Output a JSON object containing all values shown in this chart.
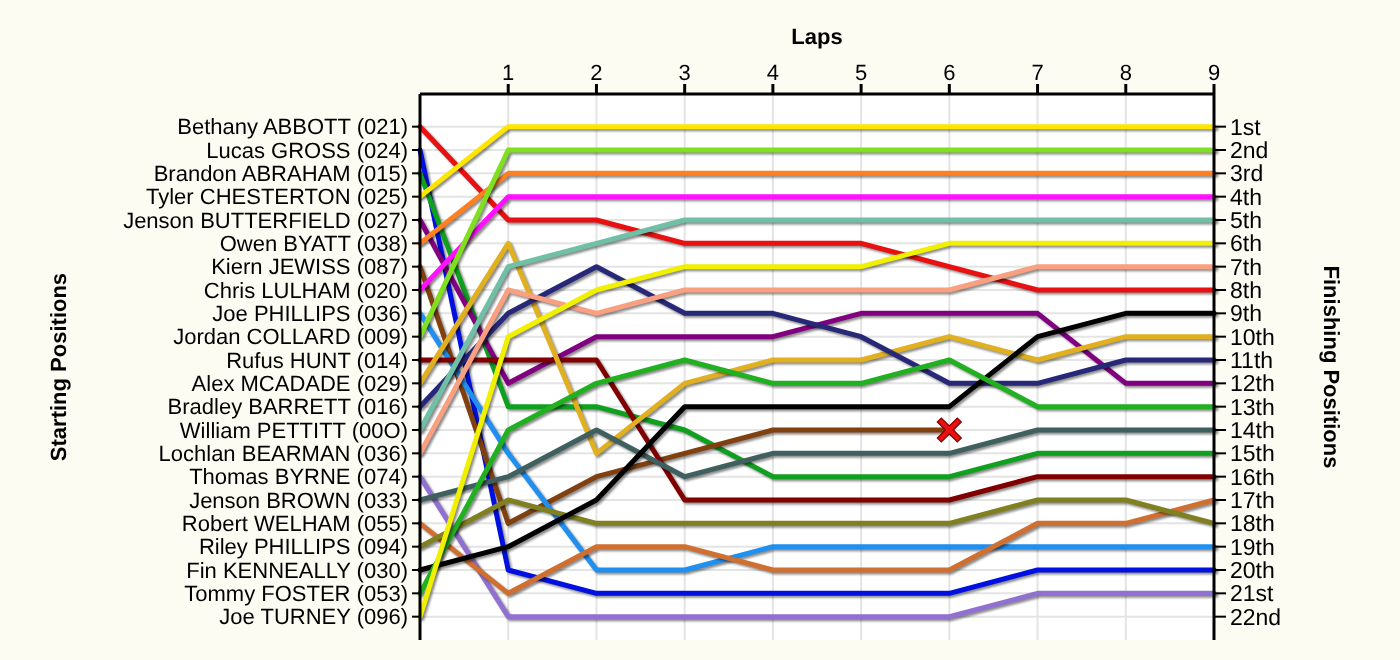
{
  "chart_data": {
    "type": "line",
    "xlabel": "Laps",
    "ylabel": "Finishing Positions",
    "annotations": [
      "Starting Positions"
    ],
    "x": [
      0,
      1,
      2,
      3,
      4,
      5,
      6,
      7,
      8,
      9
    ],
    "xlim": [
      0,
      9
    ],
    "xticks": [
      1,
      2,
      3,
      4,
      5,
      6,
      7,
      8,
      9
    ],
    "ylim": [
      23,
      -0.4
    ],
    "y2_categories": [
      "Bethany ABBOTT (021)",
      "Lucas GROSS (024)",
      "Brandon ABRAHAM (015)",
      "Tyler CHESTERTON (025)",
      "Jenson BUTTERFIELD (027)",
      "Owen BYATT (038)",
      "Kiern JEWISS (087)",
      "Chris LULHAM (020)",
      "Joe PHILLIPS (036)",
      "Jordan COLLARD (009)",
      "Rufus HUNT (014)",
      "Alex MCADADE (029)",
      "Bradley BARRETT (016)",
      "William PETTITT (00O)",
      "Lochlan BEARMAN (036)",
      "Thomas BYRNE (074)",
      "Jenson BROWN (033)",
      "Robert WELHAM (055)",
      "Riley PHILLIPS (094)",
      "Fin KENNEALLY (030)",
      "Tommy FOSTER (053)",
      "Joe TURNEY (096)"
    ],
    "yticks": [
      {
        "value": 1,
        "label": "1st"
      },
      {
        "value": 2,
        "label": "2nd"
      },
      {
        "value": 3,
        "label": "3rd"
      },
      {
        "value": 4,
        "label": "4th"
      },
      {
        "value": 5,
        "label": "5th"
      },
      {
        "value": 6,
        "label": "6th"
      },
      {
        "value": 7,
        "label": "7th"
      },
      {
        "value": 8,
        "label": "8th"
      },
      {
        "value": 9,
        "label": "9th"
      },
      {
        "value": 10,
        "label": "10th"
      },
      {
        "value": 11,
        "label": "11th"
      },
      {
        "value": 12,
        "label": "12th"
      },
      {
        "value": 13,
        "label": "13th"
      },
      {
        "value": 14,
        "label": "14th"
      },
      {
        "value": 15,
        "label": "15th"
      },
      {
        "value": 16,
        "label": "16th"
      },
      {
        "value": 17,
        "label": "17th"
      },
      {
        "value": 18,
        "label": "18th"
      },
      {
        "value": 19,
        "label": "19th"
      },
      {
        "value": 20,
        "label": "20th"
      },
      {
        "value": 21,
        "label": "21st"
      },
      {
        "value": 22,
        "label": "22nd"
      }
    ],
    "grid": true,
    "marker": "none",
    "line_style": "solid",
    "series": [
      {
        "color": "#e81010",
        "values": [
          1,
          5,
          5,
          6,
          6,
          6,
          7,
          8,
          8,
          8
        ]
      },
      {
        "color": "#0010e0",
        "values": [
          2,
          20,
          21,
          21,
          21,
          21,
          21,
          20,
          20,
          20
        ]
      },
      {
        "color": "#10a020",
        "values": [
          3,
          13,
          13,
          14,
          16,
          16,
          16,
          15,
          15,
          15
        ]
      },
      {
        "color": "#ffe600",
        "values": [
          4,
          1,
          1,
          1,
          1,
          1,
          1,
          1,
          1,
          1
        ]
      },
      {
        "color": "#800080",
        "values": [
          5,
          12,
          10,
          10,
          10,
          9,
          9,
          9,
          12,
          12
        ]
      },
      {
        "color": "#ff8020",
        "values": [
          6,
          3,
          3,
          3,
          3,
          3,
          3,
          3,
          3,
          3
        ]
      },
      {
        "color": "#804010",
        "values": [
          7,
          18,
          16,
          15,
          14,
          14,
          14,
          null,
          null,
          null
        ]
      },
      {
        "color": "#ff10ff",
        "values": [
          8,
          4,
          4,
          4,
          4,
          4,
          4,
          4,
          4,
          4
        ]
      },
      {
        "color": "#2090f0",
        "values": [
          9,
          15,
          20,
          20,
          19,
          19,
          19,
          19,
          19,
          19
        ]
      },
      {
        "color": "#80e020",
        "values": [
          10,
          2,
          2,
          2,
          2,
          2,
          2,
          2,
          2,
          2
        ]
      },
      {
        "color": "#800000",
        "values": [
          11,
          11,
          11,
          17,
          17,
          17,
          17,
          16,
          16,
          16
        ]
      },
      {
        "color": "#e0b020",
        "values": [
          12,
          6,
          15,
          12,
          11,
          11,
          10,
          11,
          10,
          10
        ]
      },
      {
        "color": "#282878",
        "values": [
          13,
          9,
          7,
          9,
          9,
          10,
          12,
          12,
          11,
          11
        ]
      },
      {
        "color": "#70c0a8",
        "values": [
          14,
          7,
          6,
          5,
          5,
          5,
          5,
          5,
          5,
          5
        ]
      },
      {
        "color": "#f8a080",
        "values": [
          15,
          8,
          9,
          8,
          8,
          8,
          8,
          7,
          7,
          7
        ]
      },
      {
        "color": "#9070d0",
        "values": [
          16,
          22,
          22,
          22,
          22,
          22,
          22,
          21,
          21,
          21
        ]
      },
      {
        "color": "#406060",
        "values": [
          17,
          16,
          14,
          16,
          15,
          15,
          15,
          14,
          14,
          14
        ]
      },
      {
        "color": "#d07030",
        "values": [
          18,
          21,
          19,
          19,
          20,
          20,
          20,
          18,
          18,
          17
        ]
      },
      {
        "color": "#808020",
        "values": [
          19,
          17,
          18,
          18,
          18,
          18,
          18,
          17,
          17,
          18
        ]
      },
      {
        "color": "#000000",
        "values": [
          20,
          19,
          17,
          13,
          13,
          13,
          13,
          10,
          9,
          9
        ]
      },
      {
        "color": "#20b020",
        "values": [
          21,
          14,
          12,
          11,
          12,
          12,
          11,
          13,
          13,
          13
        ]
      },
      {
        "color": "#f0f000",
        "values": [
          22,
          10,
          8,
          7,
          7,
          7,
          6,
          6,
          6,
          6
        ]
      },
      {
        "type": "scatter",
        "color": "#e81010",
        "marker": "cross",
        "x": [
          6
        ],
        "values": [
          14
        ]
      }
    ]
  }
}
